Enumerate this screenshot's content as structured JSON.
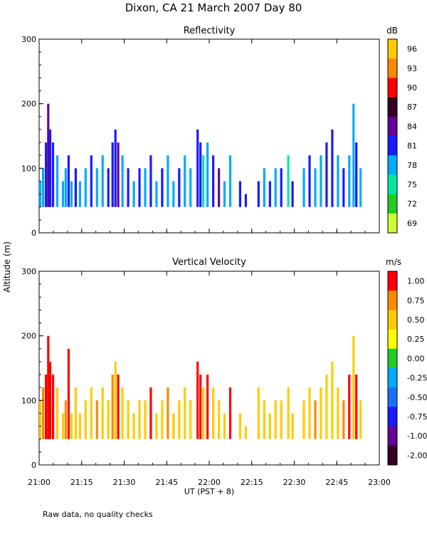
{
  "title": "Dixon, CA 21 March 2007  Day  80",
  "ylabel": "Altitude (m)",
  "xlabel": "UT  (PST + 8)",
  "footnote": "Raw data, no quality checks",
  "x_ticks": [
    "21:00",
    "21:15",
    "21:30",
    "21:45",
    "22:00",
    "22:15",
    "22:30",
    "22:45",
    "23:00"
  ],
  "x_range_minutes": [
    0,
    120
  ],
  "chart_data": [
    {
      "type": "heatmap",
      "title": "Reflectivity",
      "ylim": [
        0,
        300
      ],
      "y_ticks": [
        0,
        100,
        200,
        300
      ],
      "colorbar": {
        "unit": "dB",
        "labels": [
          "96",
          "93",
          "90",
          "87",
          "84",
          "81",
          "78",
          "75",
          "72",
          "69"
        ],
        "colors": [
          "#ffcc00",
          "#ff8800",
          "#ff0000",
          "#330022",
          "#660099",
          "#1a1aff",
          "#00aaff",
          "#00e8a0",
          "#22cc22",
          "#ccff33"
        ]
      },
      "columns": [
        {
          "t": 0,
          "top": 80,
          "c": "#00aaff"
        },
        {
          "t": 1,
          "top": 100,
          "c": "#00aaff"
        },
        {
          "t": 2,
          "top": 140,
          "c": "#1a1aff"
        },
        {
          "t": 2.8,
          "top": 200,
          "c": "#660099"
        },
        {
          "t": 3.5,
          "top": 160,
          "c": "#1a1aff"
        },
        {
          "t": 4.5,
          "top": 140,
          "c": "#1a1aff"
        },
        {
          "t": 6,
          "top": 120,
          "c": "#00aaff"
        },
        {
          "t": 8,
          "top": 80,
          "c": "#00aaff"
        },
        {
          "t": 9,
          "top": 100,
          "c": "#00aaff"
        },
        {
          "t": 10,
          "top": 120,
          "c": "#1a1aff"
        },
        {
          "t": 11,
          "top": 80,
          "c": "#00aaff"
        },
        {
          "t": 12.5,
          "top": 100,
          "c": "#1a1aff"
        },
        {
          "t": 14,
          "top": 80,
          "c": "#00aaff"
        },
        {
          "t": 16,
          "top": 100,
          "c": "#00aaff"
        },
        {
          "t": 18,
          "top": 120,
          "c": "#1a1aff"
        },
        {
          "t": 20,
          "top": 100,
          "c": "#00aaff"
        },
        {
          "t": 22,
          "top": 120,
          "c": "#00aaff"
        },
        {
          "t": 24,
          "top": 100,
          "c": "#1a1aff"
        },
        {
          "t": 25.5,
          "top": 140,
          "c": "#1a1aff"
        },
        {
          "t": 26.5,
          "top": 160,
          "c": "#1a1aff"
        },
        {
          "t": 27.5,
          "top": 140,
          "c": "#660099"
        },
        {
          "t": 29,
          "top": 120,
          "c": "#00aaff"
        },
        {
          "t": 31,
          "top": 100,
          "c": "#1a1aff"
        },
        {
          "t": 33,
          "top": 80,
          "c": "#00aaff"
        },
        {
          "t": 35,
          "top": 100,
          "c": "#1a1aff"
        },
        {
          "t": 37,
          "top": 100,
          "c": "#00aaff"
        },
        {
          "t": 39,
          "top": 120,
          "c": "#1a1aff"
        },
        {
          "t": 41,
          "top": 80,
          "c": "#00aaff"
        },
        {
          "t": 43,
          "top": 100,
          "c": "#1a1aff"
        },
        {
          "t": 45,
          "top": 120,
          "c": "#00aaff"
        },
        {
          "t": 47,
          "top": 80,
          "c": "#00aaff"
        },
        {
          "t": 49,
          "top": 100,
          "c": "#1a1aff"
        },
        {
          "t": 51,
          "top": 120,
          "c": "#00aaff"
        },
        {
          "t": 53,
          "top": 100,
          "c": "#00aaff"
        },
        {
          "t": 55.5,
          "top": 160,
          "c": "#1a1aff"
        },
        {
          "t": 56.5,
          "top": 140,
          "c": "#1a1aff"
        },
        {
          "t": 57.5,
          "top": 120,
          "c": "#00e8a0"
        },
        {
          "t": 59,
          "top": 140,
          "c": "#00aaff"
        },
        {
          "t": 61,
          "top": 120,
          "c": "#1a1aff"
        },
        {
          "t": 63,
          "top": 100,
          "c": "#660099"
        },
        {
          "t": 65,
          "top": 80,
          "c": "#00aaff"
        },
        {
          "t": 67,
          "top": 120,
          "c": "#00aaff"
        },
        {
          "t": 70.5,
          "top": 80,
          "c": "#1a1aff"
        },
        {
          "t": 72.5,
          "top": 60,
          "c": "#1a1aff"
        },
        {
          "t": 77,
          "top": 80,
          "c": "#1a1aff"
        },
        {
          "t": 79,
          "top": 100,
          "c": "#00aaff"
        },
        {
          "t": 81,
          "top": 80,
          "c": "#1a1aff"
        },
        {
          "t": 83,
          "top": 100,
          "c": "#00aaff"
        },
        {
          "t": 85,
          "top": 100,
          "c": "#1a1aff"
        },
        {
          "t": 87.5,
          "top": 120,
          "c": "#00e8a0"
        },
        {
          "t": 89,
          "top": 80,
          "c": "#1a1aff"
        },
        {
          "t": 93,
          "top": 100,
          "c": "#00aaff"
        },
        {
          "t": 95,
          "top": 120,
          "c": "#1a1aff"
        },
        {
          "t": 97,
          "top": 100,
          "c": "#00aaff"
        },
        {
          "t": 99,
          "top": 120,
          "c": "#00aaff"
        },
        {
          "t": 101,
          "top": 140,
          "c": "#1a1aff"
        },
        {
          "t": 103,
          "top": 160,
          "c": "#1a1aff"
        },
        {
          "t": 105,
          "top": 120,
          "c": "#00aaff"
        },
        {
          "t": 107,
          "top": 100,
          "c": "#1a1aff"
        },
        {
          "t": 109,
          "top": 120,
          "c": "#00aaff"
        },
        {
          "t": 110.5,
          "top": 200,
          "c": "#00aaff"
        },
        {
          "t": 111.5,
          "top": 140,
          "c": "#1a1aff"
        },
        {
          "t": 113,
          "top": 100,
          "c": "#00aaff"
        }
      ]
    },
    {
      "type": "heatmap",
      "title": "Vertical Velocity",
      "ylim": [
        0,
        300
      ],
      "y_ticks": [
        0,
        100,
        200,
        300
      ],
      "colorbar": {
        "unit": "m/s",
        "labels": [
          "1.00",
          "0.75",
          "0.50",
          "0.25",
          "0.00",
          "-0.25",
          "-0.50",
          "-0.75",
          "-1.00",
          "-2.00"
        ],
        "colors": [
          "#ff0000",
          "#ff8800",
          "#ffcc00",
          "#ffff00",
          "#22cc22",
          "#00aaff",
          "#1a6fff",
          "#1a1aff",
          "#660099",
          "#330022"
        ]
      },
      "columns": [
        {
          "t": 0,
          "top": 100,
          "c": "#ffcc00"
        },
        {
          "t": 1,
          "top": 120,
          "c": "#ff8800"
        },
        {
          "t": 2,
          "top": 140,
          "c": "#ff0000"
        },
        {
          "t": 2.8,
          "top": 200,
          "c": "#ff0000"
        },
        {
          "t": 3.5,
          "top": 160,
          "c": "#ff0000"
        },
        {
          "t": 4.5,
          "top": 140,
          "c": "#ff0000"
        },
        {
          "t": 6,
          "top": 120,
          "c": "#ffcc00"
        },
        {
          "t": 8,
          "top": 80,
          "c": "#ffcc00"
        },
        {
          "t": 9,
          "top": 100,
          "c": "#ff8800"
        },
        {
          "t": 10,
          "top": 180,
          "c": "#ff0000"
        },
        {
          "t": 11,
          "top": 80,
          "c": "#ffcc00"
        },
        {
          "t": 12.5,
          "top": 120,
          "c": "#ffcc00"
        },
        {
          "t": 14,
          "top": 80,
          "c": "#ffcc00"
        },
        {
          "t": 16,
          "top": 100,
          "c": "#ffcc00"
        },
        {
          "t": 18,
          "top": 120,
          "c": "#ffcc00"
        },
        {
          "t": 20,
          "top": 100,
          "c": "#ff8800"
        },
        {
          "t": 22,
          "top": 120,
          "c": "#ffcc00"
        },
        {
          "t": 24,
          "top": 100,
          "c": "#ffcc00"
        },
        {
          "t": 25.5,
          "top": 140,
          "c": "#ff8800"
        },
        {
          "t": 26.5,
          "top": 160,
          "c": "#ffcc00"
        },
        {
          "t": 27.5,
          "top": 140,
          "c": "#ff0000"
        },
        {
          "t": 29,
          "top": 120,
          "c": "#ffcc00"
        },
        {
          "t": 31,
          "top": 100,
          "c": "#ffcc00"
        },
        {
          "t": 33,
          "top": 80,
          "c": "#ffcc00"
        },
        {
          "t": 35,
          "top": 100,
          "c": "#ffcc00"
        },
        {
          "t": 37,
          "top": 100,
          "c": "#ffcc00"
        },
        {
          "t": 39,
          "top": 120,
          "c": "#ff0000"
        },
        {
          "t": 41,
          "top": 80,
          "c": "#ffcc00"
        },
        {
          "t": 43,
          "top": 100,
          "c": "#ffcc00"
        },
        {
          "t": 45,
          "top": 120,
          "c": "#ff8800"
        },
        {
          "t": 47,
          "top": 80,
          "c": "#ffcc00"
        },
        {
          "t": 49,
          "top": 100,
          "c": "#ffcc00"
        },
        {
          "t": 51,
          "top": 120,
          "c": "#ffcc00"
        },
        {
          "t": 53,
          "top": 100,
          "c": "#ffcc00"
        },
        {
          "t": 55.5,
          "top": 160,
          "c": "#ff0000"
        },
        {
          "t": 56.5,
          "top": 140,
          "c": "#ff0000"
        },
        {
          "t": 57.5,
          "top": 120,
          "c": "#ffcc00"
        },
        {
          "t": 59,
          "top": 140,
          "c": "#ff0000"
        },
        {
          "t": 61,
          "top": 120,
          "c": "#ffcc00"
        },
        {
          "t": 63,
          "top": 100,
          "c": "#ffcc00"
        },
        {
          "t": 65,
          "top": 80,
          "c": "#ffcc00"
        },
        {
          "t": 67,
          "top": 120,
          "c": "#ff0000"
        },
        {
          "t": 70.5,
          "top": 80,
          "c": "#ffcc00"
        },
        {
          "t": 72.5,
          "top": 60,
          "c": "#ffcc00"
        },
        {
          "t": 77,
          "top": 120,
          "c": "#ffcc00"
        },
        {
          "t": 79,
          "top": 100,
          "c": "#ffcc00"
        },
        {
          "t": 81,
          "top": 80,
          "c": "#ffcc00"
        },
        {
          "t": 83,
          "top": 100,
          "c": "#ffcc00"
        },
        {
          "t": 85,
          "top": 100,
          "c": "#ffcc00"
        },
        {
          "t": 87.5,
          "top": 120,
          "c": "#ffcc00"
        },
        {
          "t": 89,
          "top": 80,
          "c": "#ffcc00"
        },
        {
          "t": 93,
          "top": 100,
          "c": "#ffcc00"
        },
        {
          "t": 95,
          "top": 120,
          "c": "#ffcc00"
        },
        {
          "t": 97,
          "top": 100,
          "c": "#ff8800"
        },
        {
          "t": 99,
          "top": 120,
          "c": "#ffcc00"
        },
        {
          "t": 101,
          "top": 140,
          "c": "#ffcc00"
        },
        {
          "t": 103,
          "top": 160,
          "c": "#ffcc00"
        },
        {
          "t": 105,
          "top": 120,
          "c": "#ffcc00"
        },
        {
          "t": 107,
          "top": 100,
          "c": "#ff8800"
        },
        {
          "t": 109,
          "top": 140,
          "c": "#ff0000"
        },
        {
          "t": 110.5,
          "top": 200,
          "c": "#ffcc00"
        },
        {
          "t": 111.5,
          "top": 140,
          "c": "#ff0000"
        },
        {
          "t": 113,
          "top": 100,
          "c": "#ffcc00"
        }
      ]
    }
  ]
}
